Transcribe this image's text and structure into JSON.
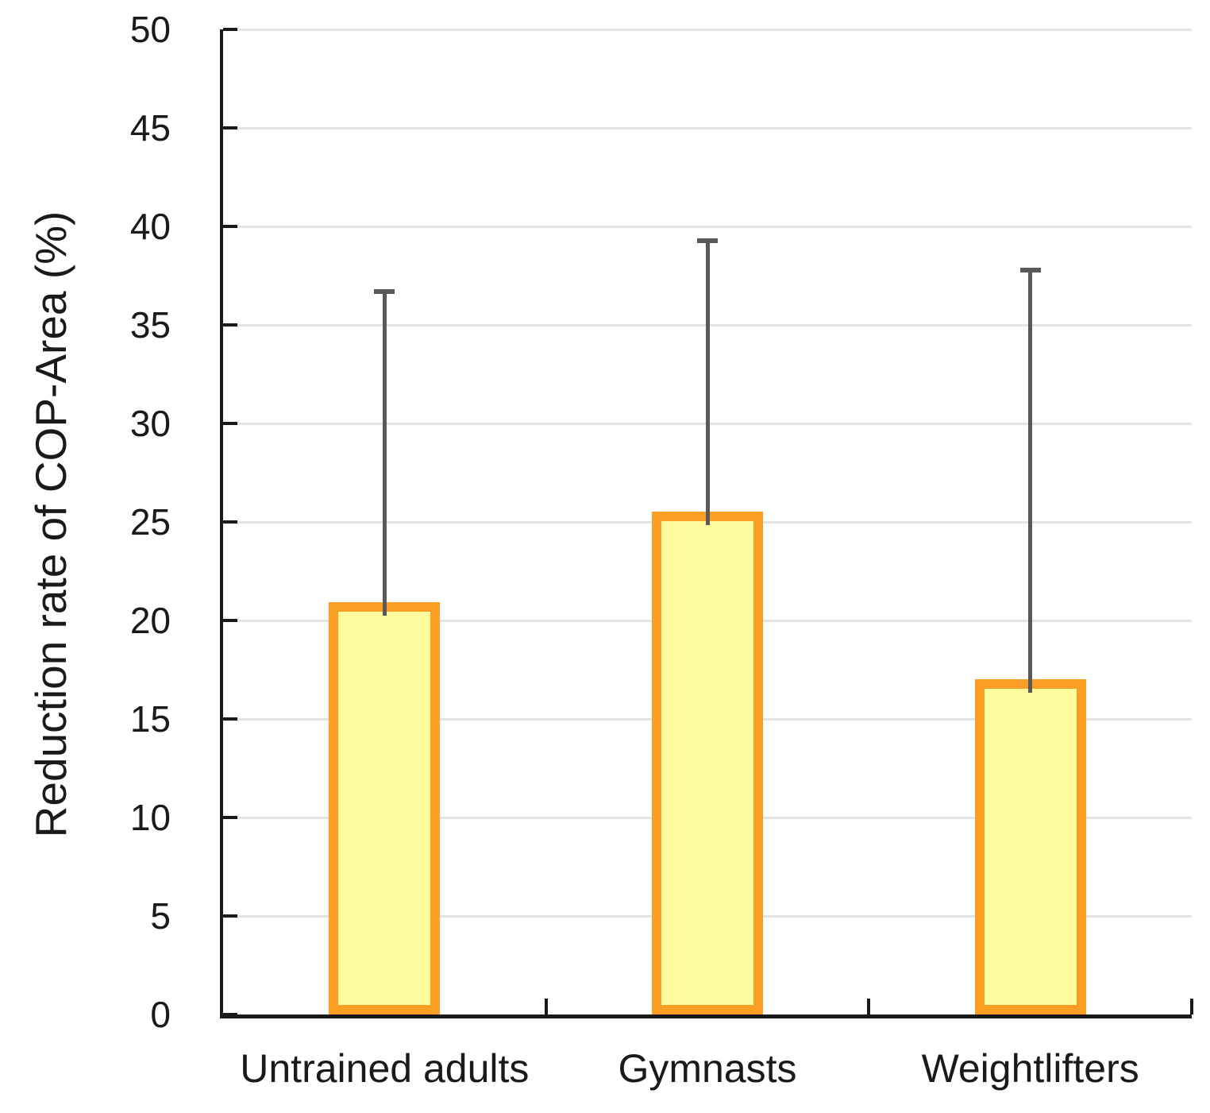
{
  "chart_data": {
    "type": "bar",
    "title": "",
    "ylabel": "Reduction rate of COP-Area (%)",
    "xlabel": "",
    "categories": [
      "Untrained adults",
      "Gymnasts",
      "Weightlifters"
    ],
    "values": [
      20.8,
      25.4,
      16.9
    ],
    "error_upper": [
      16.0,
      14.0,
      21.0
    ],
    "error_whisker_tops": [
      36.8,
      39.4,
      37.9
    ],
    "ylim": [
      0,
      50
    ],
    "ytick_step": 5,
    "ytick_labels": [
      "0",
      "5",
      "10",
      "15",
      "20",
      "25",
      "30",
      "35",
      "40",
      "45",
      "50"
    ],
    "grid": "horizontal",
    "legend": "none",
    "error_bars": "upper-only",
    "colors": {
      "bar_fill": "#FFFC9E",
      "bar_border": "#FB9E24",
      "error_bar": "#595959",
      "gridline": "#E4E4E4",
      "axis": "#1A1A1A",
      "text": "#1A1A1A",
      "background": "#FFFFFF"
    }
  }
}
